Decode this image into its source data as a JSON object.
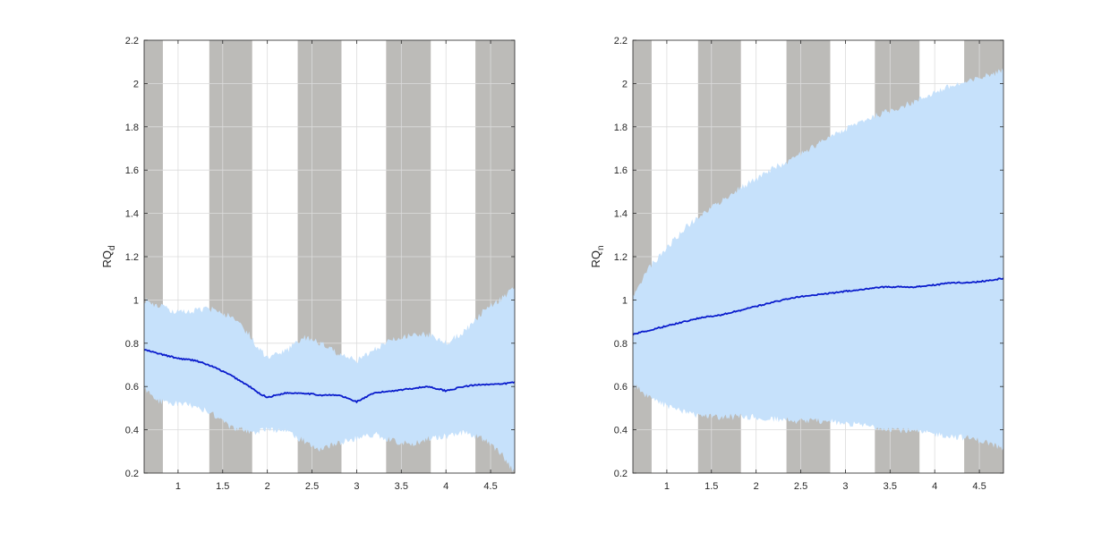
{
  "chart_data": [
    {
      "type": "area",
      "ylabel": "RQ",
      "ylabel_subscript": "d",
      "xlim": [
        0.62,
        4.77
      ],
      "ylim": [
        0.2,
        2.2
      ],
      "xticks": [
        1,
        1.5,
        2,
        2.5,
        3,
        3.5,
        4,
        4.5
      ],
      "xtick_labels": [
        "1",
        "1.5",
        "2",
        "2.5",
        "3",
        "3.5",
        "4",
        "4.5"
      ],
      "yticks": [
        0.2,
        0.4,
        0.6,
        0.8,
        1,
        1.2,
        1.4,
        1.6,
        1.8,
        2,
        2.2
      ],
      "ytick_labels": [
        "0.2",
        "0.4",
        "0.6",
        "0.8",
        "1",
        "1.2",
        "1.4",
        "1.6",
        "1.8",
        "2",
        "2.2"
      ],
      "grid": true,
      "shaded_bands": [
        [
          0.62,
          0.83
        ],
        [
          1.35,
          1.83
        ],
        [
          2.34,
          2.83
        ],
        [
          3.33,
          3.83
        ],
        [
          4.33,
          4.77
        ]
      ],
      "colors": {
        "band": "#bcbbb8",
        "ci": "#c6e1fb",
        "line": "#0a1ccc"
      },
      "x": [
        0.62,
        0.8,
        1.0,
        1.2,
        1.4,
        1.6,
        1.8,
        1.9,
        2.0,
        2.2,
        2.4,
        2.6,
        2.8,
        3.0,
        3.2,
        3.4,
        3.6,
        3.8,
        4.0,
        4.2,
        4.4,
        4.6,
        4.77
      ],
      "series": [
        {
          "values": [
            0.77,
            0.75,
            0.73,
            0.72,
            0.69,
            0.65,
            0.6,
            0.57,
            0.55,
            0.57,
            0.57,
            0.56,
            0.56,
            0.53,
            0.57,
            0.58,
            0.59,
            0.6,
            0.58,
            0.6,
            0.61,
            0.61,
            0.62
          ]
        }
      ],
      "band_upper": [
        1.0,
        0.97,
        0.94,
        0.95,
        0.96,
        0.92,
        0.84,
        0.77,
        0.74,
        0.76,
        0.83,
        0.8,
        0.75,
        0.72,
        0.77,
        0.82,
        0.84,
        0.84,
        0.8,
        0.85,
        0.94,
        1.0,
        1.06
      ],
      "band_lower": [
        0.59,
        0.53,
        0.52,
        0.51,
        0.47,
        0.41,
        0.39,
        0.39,
        0.4,
        0.39,
        0.35,
        0.31,
        0.34,
        0.36,
        0.38,
        0.35,
        0.33,
        0.36,
        0.37,
        0.39,
        0.36,
        0.3,
        0.2
      ]
    },
    {
      "type": "area",
      "ylabel": "RQ",
      "ylabel_subscript": "n",
      "xlim": [
        0.62,
        4.77
      ],
      "ylim": [
        0.2,
        2.2
      ],
      "xticks": [
        1,
        1.5,
        2,
        2.5,
        3,
        3.5,
        4,
        4.5
      ],
      "xtick_labels": [
        "1",
        "1.5",
        "2",
        "2.5",
        "3",
        "3.5",
        "4",
        "4.5"
      ],
      "yticks": [
        0.2,
        0.4,
        0.6,
        0.8,
        1,
        1.2,
        1.4,
        1.6,
        1.8,
        2,
        2.2
      ],
      "ytick_labels": [
        "0.2",
        "0.4",
        "0.6",
        "0.8",
        "1",
        "1.2",
        "1.4",
        "1.6",
        "1.8",
        "2",
        "2.2"
      ],
      "grid": true,
      "shaded_bands": [
        [
          0.62,
          0.83
        ],
        [
          1.35,
          1.83
        ],
        [
          2.34,
          2.83
        ],
        [
          3.33,
          3.83
        ],
        [
          4.33,
          4.77
        ]
      ],
      "colors": {
        "band": "#bcbbb8",
        "ci": "#c6e1fb",
        "line": "#0a1ccc"
      },
      "x": [
        0.62,
        0.8,
        1.0,
        1.2,
        1.4,
        1.6,
        1.8,
        2.0,
        2.2,
        2.4,
        2.6,
        2.8,
        3.0,
        3.2,
        3.4,
        3.6,
        3.8,
        4.0,
        4.2,
        4.4,
        4.6,
        4.77
      ],
      "series": [
        {
          "values": [
            0.84,
            0.86,
            0.88,
            0.9,
            0.92,
            0.93,
            0.95,
            0.97,
            0.99,
            1.01,
            1.02,
            1.03,
            1.04,
            1.05,
            1.06,
            1.06,
            1.06,
            1.07,
            1.08,
            1.08,
            1.09,
            1.1
          ]
        }
      ],
      "band_upper": [
        1.02,
        1.15,
        1.24,
        1.33,
        1.4,
        1.45,
        1.51,
        1.56,
        1.61,
        1.65,
        1.7,
        1.75,
        1.79,
        1.83,
        1.86,
        1.89,
        1.92,
        1.96,
        1.99,
        2.01,
        2.04,
        2.06
      ],
      "band_lower": [
        0.61,
        0.55,
        0.51,
        0.48,
        0.46,
        0.46,
        0.46,
        0.46,
        0.45,
        0.44,
        0.44,
        0.44,
        0.43,
        0.42,
        0.41,
        0.4,
        0.39,
        0.38,
        0.37,
        0.36,
        0.34,
        0.31
      ]
    }
  ]
}
